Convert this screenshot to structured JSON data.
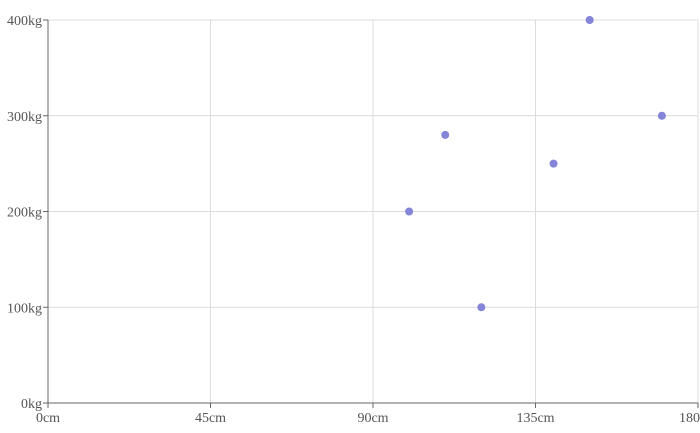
{
  "chart_data": {
    "type": "scatter",
    "title": "",
    "xlabel": "",
    "ylabel": "",
    "xlim": [
      0,
      180
    ],
    "ylim": [
      0,
      400
    ],
    "x_ticks": [
      0,
      45,
      90,
      135,
      180
    ],
    "y_ticks": [
      0,
      100,
      200,
      300,
      400
    ],
    "x_tick_labels": [
      "0cm",
      "45cm",
      "90cm",
      "135cm",
      "180cm"
    ],
    "y_tick_labels": [
      "0kg",
      "100kg",
      "200kg",
      "300kg",
      "400kg"
    ],
    "grid": true,
    "legend": "none",
    "point_color": "#8484d8",
    "series": [
      {
        "points": [
          {
            "x": 100,
            "y": 200
          },
          {
            "x": 110,
            "y": 280
          },
          {
            "x": 120,
            "y": 100
          },
          {
            "x": 140,
            "y": 250
          },
          {
            "x": 150,
            "y": 400
          },
          {
            "x": 170,
            "y": 300
          }
        ]
      }
    ]
  }
}
